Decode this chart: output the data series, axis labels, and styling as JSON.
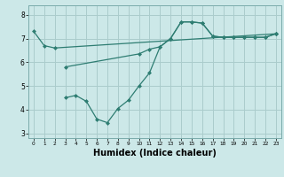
{
  "bg_color": "#cce8e8",
  "grid_color": "#aacccc",
  "line_color": "#2e7d72",
  "xlabel": "Humidex (Indice chaleur)",
  "xlabel_fontsize": 7,
  "xlim": [
    -0.5,
    23.5
  ],
  "ylim": [
    2.8,
    8.4
  ],
  "yticks": [
    3,
    4,
    5,
    6,
    7,
    8
  ],
  "xticks": [
    0,
    1,
    2,
    3,
    4,
    5,
    6,
    7,
    8,
    9,
    10,
    11,
    12,
    13,
    14,
    15,
    16,
    17,
    18,
    19,
    20,
    21,
    22,
    23
  ],
  "line1_x": [
    0,
    1,
    2,
    23
  ],
  "line1_y": [
    7.3,
    6.7,
    6.6,
    7.2
  ],
  "line2_x": [
    3,
    10,
    11,
    12,
    13,
    14,
    15,
    16,
    17,
    18,
    19,
    20,
    21,
    22,
    23
  ],
  "line2_y": [
    5.8,
    6.35,
    6.55,
    6.65,
    7.0,
    7.7,
    7.7,
    7.65,
    7.1,
    7.05,
    7.05,
    7.05,
    7.05,
    7.05,
    7.2
  ],
  "line3_x": [
    3,
    4,
    5,
    6,
    7,
    8,
    9,
    10,
    11,
    12,
    13,
    14,
    15,
    16,
    17,
    18,
    19,
    20,
    21,
    22,
    23
  ],
  "line3_y": [
    4.5,
    4.6,
    4.35,
    3.6,
    3.45,
    4.05,
    4.4,
    5.0,
    5.55,
    6.65,
    7.0,
    7.7,
    7.7,
    7.65,
    7.1,
    7.05,
    7.05,
    7.05,
    7.05,
    7.05,
    7.2
  ],
  "marker_size": 2.5,
  "line_width": 0.9
}
